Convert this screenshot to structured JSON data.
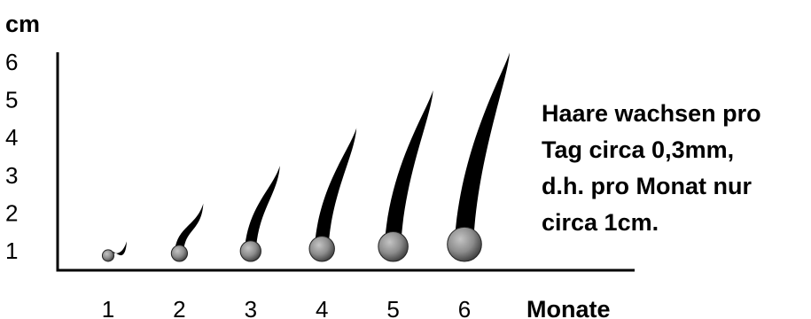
{
  "chart_data": {
    "type": "scatter",
    "ylabel": "cm",
    "xlabel": "Monate",
    "x": [
      1,
      2,
      3,
      4,
      5,
      6
    ],
    "values": [
      1,
      2,
      3,
      4,
      5,
      6
    ],
    "xlim": [
      1,
      6
    ],
    "ylim": [
      1,
      6
    ],
    "x_ticks": [
      "1",
      "2",
      "3",
      "4",
      "5",
      "6"
    ],
    "y_ticks": [
      "1",
      "2",
      "3",
      "4",
      "5",
      "6"
    ],
    "grid": false,
    "marker": "hair-strand",
    "colors": {
      "axis": "#000000",
      "hair": "#000000",
      "root": "#8c8c8c"
    }
  },
  "annotation": {
    "lines": [
      "Haare wachsen pro",
      "Tag circa 0,3mm,",
      "d.h. pro Monat nur",
      "circa 1cm."
    ]
  }
}
